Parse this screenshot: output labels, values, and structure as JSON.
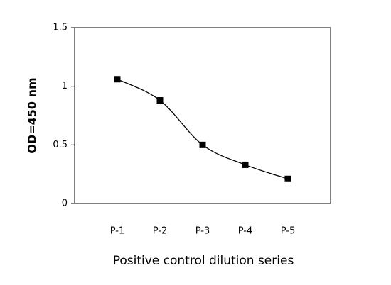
{
  "chart_data": {
    "type": "line",
    "categories": [
      "P-1",
      "P-2",
      "P-3",
      "P-4",
      "P-5"
    ],
    "series": [
      {
        "color": "#000000",
        "values": [
          1.06,
          0.88,
          0.5,
          0.33,
          0.21
        ]
      }
    ],
    "xlabel": "Positive control dilution series",
    "ylabel": "OD=450 nm",
    "ylim": [
      0,
      1.5
    ],
    "yticks": [
      0,
      0.5,
      1,
      1.5
    ],
    "smooth": true,
    "grid": false
  }
}
